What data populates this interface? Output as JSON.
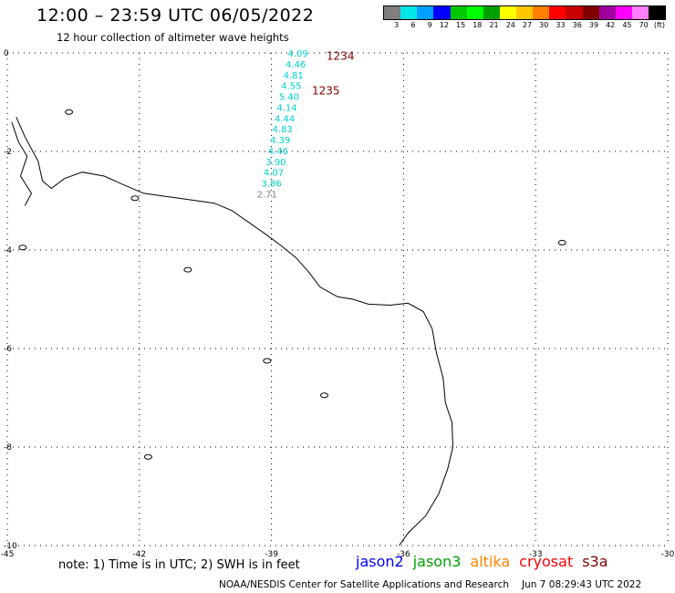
{
  "title": "12:00 – 23:59 UTC 06/05/2022",
  "subtitle": "12 hour collection of altimeter wave heights",
  "colorbar": {
    "unit": "(ft)",
    "labels": [
      "3",
      "6",
      "9",
      "12",
      "15",
      "18",
      "21",
      "24",
      "27",
      "30",
      "33",
      "36",
      "39",
      "42",
      "45",
      "70"
    ],
    "colors": [
      "#7f7f7f",
      "#00e6e6",
      "#00a0ff",
      "#0000ff",
      "#00c800",
      "#00ff00",
      "#00a000",
      "#ffff00",
      "#ffc800",
      "#ff8000",
      "#ff0000",
      "#c80000",
      "#800000",
      "#a000a0",
      "#ff00ff",
      "#ff80ff",
      "#000000"
    ]
  },
  "map": {
    "lon_range": [
      -45,
      -30
    ],
    "lat_range": [
      -10,
      0
    ],
    "lon_ticks": [
      -45,
      -42,
      -39,
      -36,
      -33,
      -30
    ],
    "lat_ticks": [
      0,
      -2,
      -4,
      -6,
      -8,
      -10
    ],
    "lat_tick_labels": [
      "0",
      "-2",
      "-4",
      "-6",
      "-8",
      "-10"
    ]
  },
  "observations": [
    {
      "lat": 0.0,
      "lon": -38.4,
      "swh": "4.09",
      "color": "#00d0d0"
    },
    {
      "lat": -0.22,
      "lon": -38.45,
      "swh": "4.46",
      "color": "#00d0d0"
    },
    {
      "lat": -0.44,
      "lon": -38.5,
      "swh": "4.81",
      "color": "#00d0d0"
    },
    {
      "lat": -0.66,
      "lon": -38.55,
      "swh": "4.55",
      "color": "#00d0d0"
    },
    {
      "lat": -0.88,
      "lon": -38.6,
      "swh": "5.40",
      "color": "#00d0d0"
    },
    {
      "lat": -1.1,
      "lon": -38.65,
      "swh": "4.14",
      "color": "#00d0d0"
    },
    {
      "lat": -1.32,
      "lon": -38.7,
      "swh": "4.44",
      "color": "#00d0d0"
    },
    {
      "lat": -1.54,
      "lon": -38.75,
      "swh": "4.83",
      "color": "#00d0d0"
    },
    {
      "lat": -1.76,
      "lon": -38.8,
      "swh": "4.39",
      "color": "#00d0d0"
    },
    {
      "lat": -1.98,
      "lon": -38.85,
      "swh": "4.46",
      "color": "#00d0d0"
    },
    {
      "lat": -2.2,
      "lon": -38.9,
      "swh": "3.90",
      "color": "#00d0d0"
    },
    {
      "lat": -2.42,
      "lon": -38.95,
      "swh": "4.07",
      "color": "#00d0d0"
    },
    {
      "lat": -2.64,
      "lon": -39.0,
      "swh": "3.86",
      "color": "#00d0d0"
    },
    {
      "lat": -2.86,
      "lon": -39.1,
      "swh": "2.71",
      "color": "#808080"
    }
  ],
  "time_labels": [
    {
      "lat": -0.05,
      "lon": -37.75,
      "text": "1234",
      "color": "#800000"
    },
    {
      "lat": -0.75,
      "lon": -38.08,
      "text": "1235",
      "color": "#800000"
    }
  ],
  "coastline": [
    [
      -44.8,
      -1.3
    ],
    [
      -44.6,
      -1.7
    ],
    [
      -44.3,
      -2.2
    ],
    [
      -44.2,
      -2.6
    ],
    [
      -44.0,
      -2.75
    ],
    [
      -43.7,
      -2.55
    ],
    [
      -43.3,
      -2.42
    ],
    [
      -42.8,
      -2.5
    ],
    [
      -42.3,
      -2.7
    ],
    [
      -41.9,
      -2.85
    ],
    [
      -41.5,
      -2.9
    ],
    [
      -41.1,
      -2.95
    ],
    [
      -40.7,
      -3.0
    ],
    [
      -40.3,
      -3.05
    ],
    [
      -39.9,
      -3.2
    ],
    [
      -39.5,
      -3.45
    ],
    [
      -39.1,
      -3.7
    ],
    [
      -38.8,
      -3.9
    ],
    [
      -38.45,
      -4.15
    ],
    [
      -38.15,
      -4.45
    ],
    [
      -37.9,
      -4.75
    ],
    [
      -37.5,
      -4.95
    ],
    [
      -37.15,
      -5.0
    ],
    [
      -36.8,
      -5.1
    ],
    [
      -36.3,
      -5.12
    ],
    [
      -35.9,
      -5.08
    ],
    [
      -35.55,
      -5.25
    ],
    [
      -35.35,
      -5.6
    ],
    [
      -35.25,
      -6.1
    ],
    [
      -35.1,
      -6.6
    ],
    [
      -35.05,
      -7.1
    ],
    [
      -34.9,
      -7.5
    ],
    [
      -34.88,
      -8.0
    ],
    [
      -35.0,
      -8.45
    ],
    [
      -35.2,
      -8.95
    ],
    [
      -35.5,
      -9.4
    ],
    [
      -35.9,
      -9.75
    ],
    [
      -36.1,
      -10.0
    ]
  ],
  "islands": [
    {
      "lon": -43.6,
      "lat": -1.2
    },
    {
      "lon": -40.9,
      "lat": -4.4
    },
    {
      "lon": -39.1,
      "lat": -6.25
    },
    {
      "lon": -37.8,
      "lat": -6.95
    },
    {
      "lon": -41.8,
      "lat": -8.2
    },
    {
      "lon": -44.65,
      "lat": -3.95
    },
    {
      "lon": -32.4,
      "lat": -3.85
    },
    {
      "lon": -42.1,
      "lat": -2.95
    }
  ],
  "note": "note: 1) Time is in UTC; 2) SWH is in feet",
  "satellites": [
    {
      "name": "jason2",
      "color": "#0000ff"
    },
    {
      "name": "jason3",
      "color": "#00a000"
    },
    {
      "name": "altika",
      "color": "#ff8000"
    },
    {
      "name": "cryosat",
      "color": "#ff0000"
    },
    {
      "name": "s3a",
      "color": "#800000"
    }
  ],
  "credit": "NOAA/NESDIS Center for Satellite Applications and Research",
  "timestamp": "Jun  7 08:29:43 UTC 2022"
}
